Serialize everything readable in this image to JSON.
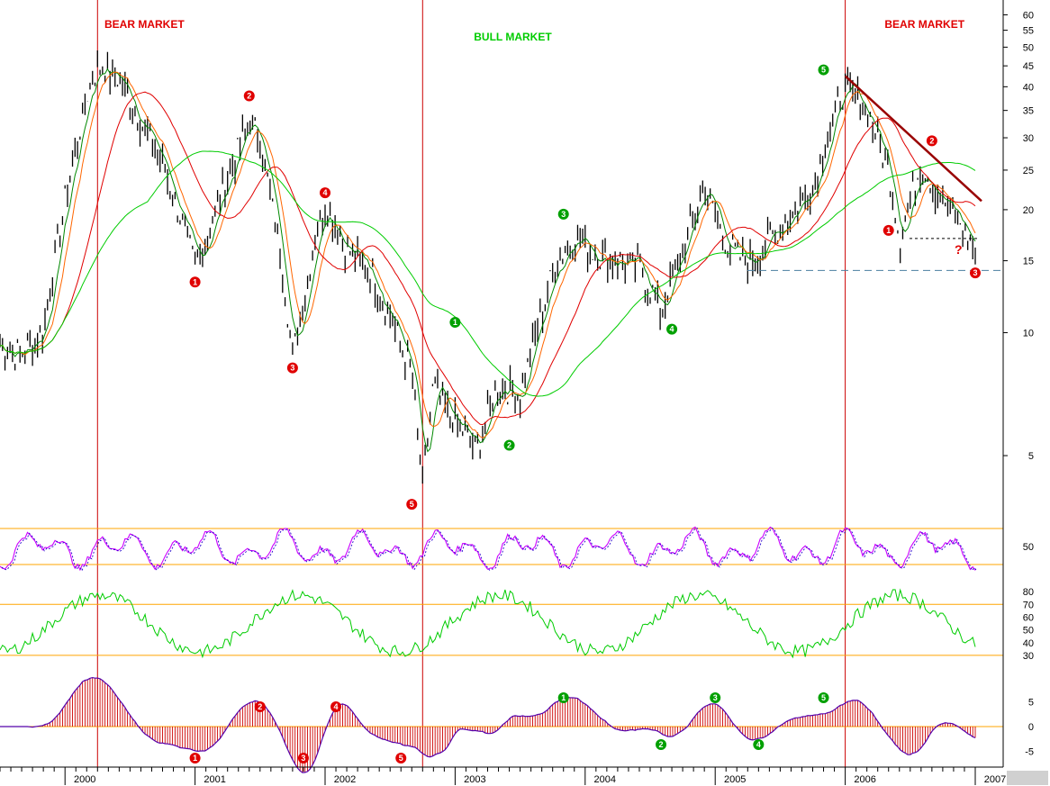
{
  "chart_data": {
    "type": "line",
    "scale": "log",
    "x_range": [
      "1999-07",
      "2007-01"
    ],
    "year_labels": [
      "2000",
      "2001",
      "2002",
      "2003",
      "2004",
      "2005",
      "2006",
      "2007"
    ],
    "y_ticks_main": [
      5,
      10,
      15,
      20,
      25,
      30,
      35,
      40,
      45,
      50,
      55,
      60
    ],
    "y_range_main": [
      4.0,
      62
    ],
    "y_ticks_rsi": [
      50
    ],
    "y_ticks_stoch": [
      30,
      40,
      50,
      60,
      70,
      80
    ],
    "y_ticks_macd": [
      -5,
      0,
      5
    ],
    "annotations": [
      {
        "text": "BEAR MARKET",
        "date": "2000-05",
        "color": "#e00000"
      },
      {
        "text": "BULL MARKET",
        "date": "2003-03",
        "color": "#00cc00"
      },
      {
        "text": "BEAR MARKET",
        "date": "2006-05",
        "color": "#e00000"
      }
    ],
    "question_mark": "?",
    "vertical_lines": [
      "2000-04",
      "2002-10",
      "2006-01"
    ],
    "colors": {
      "price": "#000000",
      "ma_short": "#008800",
      "ma_mid": "#ff6600",
      "ma_long": "#e00000",
      "ma_longest": "#00cc00",
      "rsi": "#cc00ff",
      "stoch": "#00cc00",
      "macd": "#5500aa",
      "hist": "#cc0000",
      "guide": "#ffa500",
      "bear_wave": "#e00000",
      "bull_wave": "#00a000",
      "trendline": "#990000"
    },
    "price_waypoints": [
      [
        "1999-07",
        9.3
      ],
      [
        "1999-09",
        8.8
      ],
      [
        "1999-11",
        10.2
      ],
      [
        "2000-01",
        21
      ],
      [
        "2000-03",
        38
      ],
      [
        "2000-04",
        45
      ],
      [
        "2000-06",
        42
      ],
      [
        "2000-08",
        33
      ],
      [
        "2000-10",
        26
      ],
      [
        "2000-12",
        18
      ],
      [
        "2001-01",
        14.5
      ],
      [
        "2001-02",
        17
      ],
      [
        "2001-04",
        24
      ],
      [
        "2001-06",
        33
      ],
      [
        "2001-07",
        30
      ],
      [
        "2001-09",
        15
      ],
      [
        "2001-10",
        8.8
      ],
      [
        "2001-11",
        12
      ],
      [
        "2001-12",
        17
      ],
      [
        "2002-01",
        20.5
      ],
      [
        "2002-03",
        16
      ],
      [
        "2002-05",
        14.5
      ],
      [
        "2002-07",
        11
      ],
      [
        "2002-09",
        8
      ],
      [
        "2002-10",
        4.2
      ],
      [
        "2002-11",
        7.5
      ],
      [
        "2002-12",
        6.5
      ],
      [
        "2003-02",
        5.6
      ],
      [
        "2003-03",
        5.2
      ],
      [
        "2003-05",
        7.5
      ],
      [
        "2003-07",
        7.0
      ],
      [
        "2003-08",
        9
      ],
      [
        "2003-10",
        14
      ],
      [
        "2003-12",
        17.5
      ],
      [
        "2004-02",
        15.5
      ],
      [
        "2004-04",
        15
      ],
      [
        "2004-06",
        14.5
      ],
      [
        "2004-08",
        11.3
      ],
      [
        "2004-10",
        16
      ],
      [
        "2004-12",
        23
      ],
      [
        "2005-02",
        16.5
      ],
      [
        "2005-04",
        14.8
      ],
      [
        "2005-06",
        17
      ],
      [
        "2005-08",
        19.5
      ],
      [
        "2005-10",
        23
      ],
      [
        "2005-12",
        34
      ],
      [
        "2006-01",
        40
      ],
      [
        "2006-03",
        35
      ],
      [
        "2006-05",
        25
      ],
      [
        "2006-06",
        17
      ],
      [
        "2006-08",
        26
      ],
      [
        "2006-10",
        21
      ],
      [
        "2006-12",
        18
      ],
      [
        "2007-01",
        15.7
      ]
    ],
    "waves": [
      {
        "label": "1",
        "date": "2001-01",
        "value": 13.3,
        "type": "bear"
      },
      {
        "label": "2",
        "date": "2001-06",
        "value": 38,
        "type": "bear"
      },
      {
        "label": "3",
        "date": "2001-10",
        "value": 8.2,
        "type": "bear"
      },
      {
        "label": "4",
        "date": "2002-01",
        "value": 22,
        "type": "bear"
      },
      {
        "label": "5",
        "date": "2002-09",
        "value": 3.8,
        "type": "bear"
      },
      {
        "label": "1",
        "date": "2003-01",
        "value": 10.6,
        "type": "bull"
      },
      {
        "label": "2",
        "date": "2003-06",
        "value": 5.3,
        "type": "bull"
      },
      {
        "label": "3",
        "date": "2003-11",
        "value": 19.5,
        "type": "bull"
      },
      {
        "label": "4",
        "date": "2004-09",
        "value": 10.2,
        "type": "bull"
      },
      {
        "label": "5",
        "date": "2005-11",
        "value": 44,
        "type": "bull"
      },
      {
        "label": "1",
        "date": "2006-05",
        "value": 17.8,
        "type": "bear"
      },
      {
        "label": "2",
        "date": "2006-09",
        "value": 29.5,
        "type": "bear"
      },
      {
        "label": "3",
        "date": "2007-01",
        "value": 14.0,
        "type": "bear"
      }
    ],
    "macd_waves": [
      {
        "label": "1",
        "date": "2001-01",
        "type": "bear"
      },
      {
        "label": "2",
        "date": "2001-07",
        "type": "bear"
      },
      {
        "label": "3",
        "date": "2001-11",
        "type": "bear"
      },
      {
        "label": "4",
        "date": "2002-02",
        "type": "bear"
      },
      {
        "label": "5",
        "date": "2002-08",
        "type": "bear"
      },
      {
        "label": "1",
        "date": "2003-11",
        "type": "bull"
      },
      {
        "label": "2",
        "date": "2004-08",
        "type": "bull"
      },
      {
        "label": "3",
        "date": "2005-01",
        "type": "bull"
      },
      {
        "label": "4",
        "date": "2005-05",
        "type": "bull"
      },
      {
        "label": "5",
        "date": "2005-11",
        "type": "bull"
      }
    ],
    "rsi_levels": [
      60,
      40
    ],
    "stoch_levels": [
      70,
      30
    ]
  }
}
